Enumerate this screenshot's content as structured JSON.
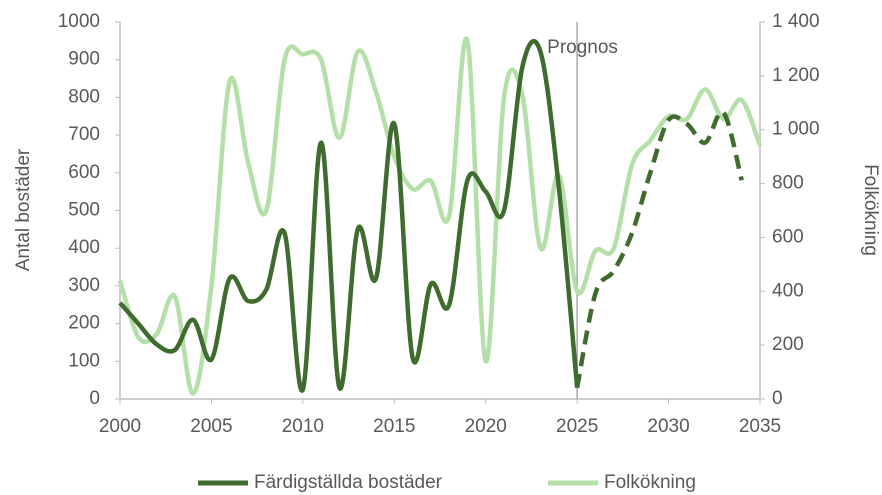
{
  "chart_data": {
    "type": "line",
    "x": [
      2000,
      2001,
      2002,
      2003,
      2004,
      2005,
      2006,
      2007,
      2008,
      2009,
      2010,
      2011,
      2012,
      2013,
      2014,
      2015,
      2016,
      2017,
      2018,
      2019,
      2020,
      2021,
      2022,
      2023,
      2024,
      2025,
      2026,
      2027,
      2028,
      2029,
      2030,
      2031,
      2032,
      2033,
      2034,
      2035
    ],
    "series": [
      {
        "name": "Färdigställda bostäder",
        "color": "#3f6b2f",
        "axis": "y",
        "values": [
          255,
          200,
          145,
          130,
          210,
          105,
          320,
          260,
          290,
          440,
          25,
          680,
          30,
          450,
          320,
          730,
          110,
          305,
          250,
          580,
          550,
          500,
          880,
          920,
          560,
          30,
          280,
          340,
          440,
          600,
          740,
          730,
          680,
          760,
          580,
          null
        ]
      },
      {
        "name": "Folkökning",
        "color": "#b5dfa8",
        "axis": "y2",
        "values": [
          440,
          230,
          240,
          380,
          20,
          420,
          1180,
          880,
          700,
          1260,
          1280,
          1260,
          970,
          1290,
          1140,
          900,
          780,
          810,
          680,
          1330,
          140,
          1120,
          1130,
          560,
          830,
          400,
          550,
          560,
          870,
          960,
          1050,
          1040,
          1150,
          1040,
          1110,
          940
        ]
      }
    ],
    "annotation": {
      "text": "Prognos",
      "x": 2025
    },
    "ylabel": "Antal bostäder",
    "y2label": "Folkökning",
    "xlim": [
      2000,
      2035
    ],
    "xticks": [
      2000,
      2005,
      2010,
      2015,
      2020,
      2025,
      2030,
      2035
    ],
    "ylim": [
      0,
      1000
    ],
    "yticks": [
      0,
      100,
      200,
      300,
      400,
      500,
      600,
      700,
      800,
      900,
      1000
    ],
    "y2lim": [
      0,
      1400
    ],
    "y2ticks": [
      0,
      200,
      400,
      600,
      800,
      {
        "value": 1000,
        "label": "1 000"
      },
      {
        "value": 1200,
        "label": "1 200"
      },
      {
        "value": 1400,
        "label": "1 400"
      }
    ],
    "grid": false,
    "legend": "bottom"
  }
}
